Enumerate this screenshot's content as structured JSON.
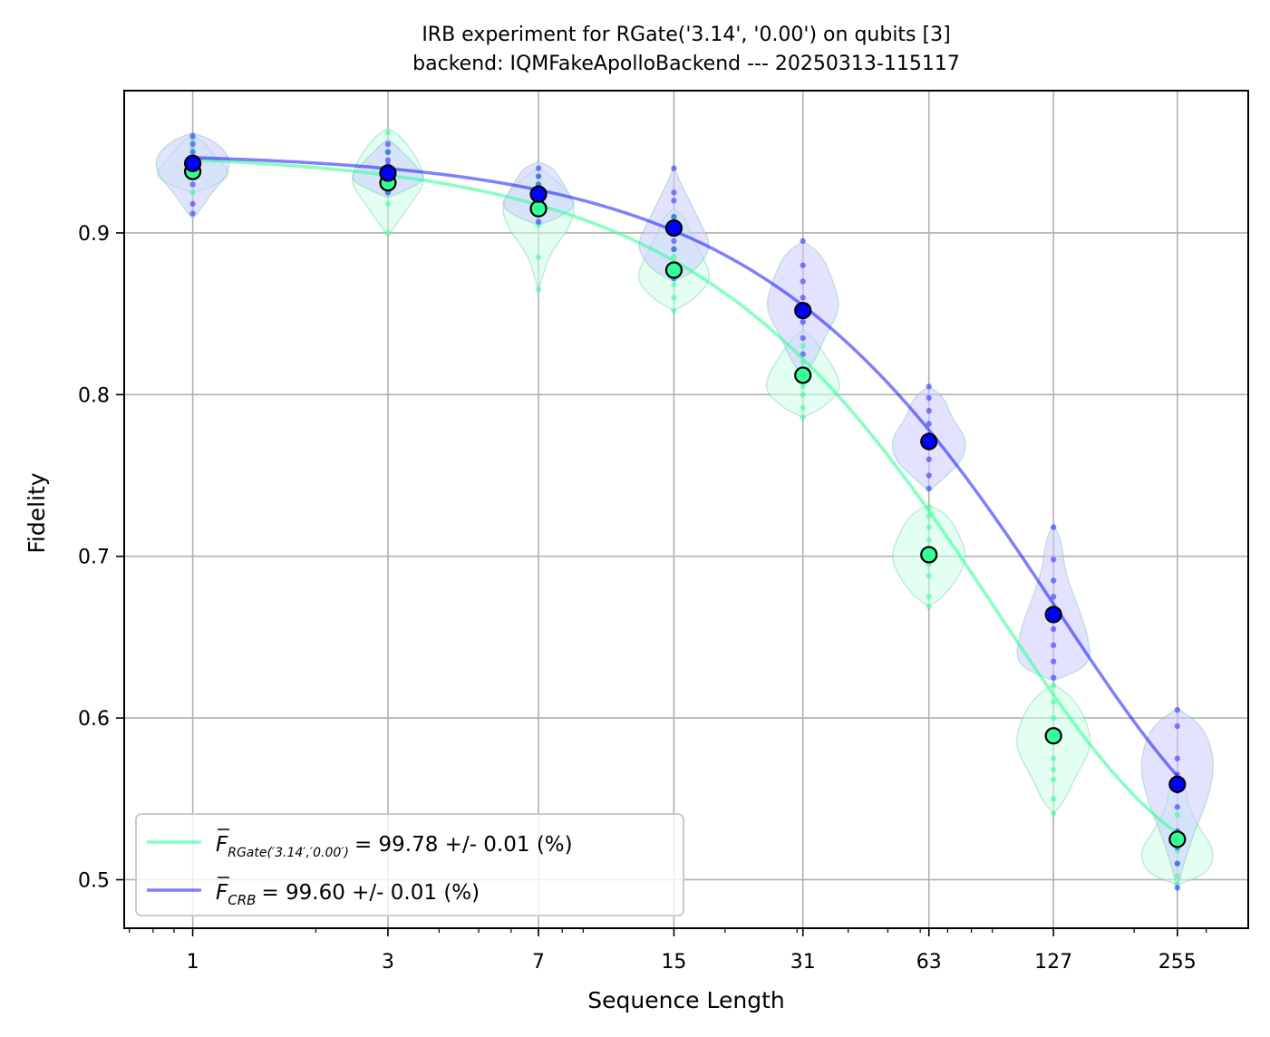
{
  "chart_data": {
    "type": "scatter",
    "title": "IRB experiment for RGate('3.14', '0.00') on qubits [3]",
    "subtitle": "backend: IQMFakeApolloBackend --- 20250313-115117",
    "xlabel": "Sequence Length",
    "ylabel": "Fidelity",
    "x_scale": "log",
    "x": [
      1,
      3,
      7,
      15,
      31,
      63,
      127,
      255
    ],
    "x_ticklabels": [
      "1",
      "3",
      "7",
      "15",
      "31",
      "63",
      "127",
      "255"
    ],
    "xlim": [
      0.68,
      380
    ],
    "y_ticks": [
      0.5,
      0.6,
      0.7,
      0.8,
      0.9
    ],
    "y_ticklabels": [
      "0.5",
      "0.6",
      "0.7",
      "0.8",
      "0.9"
    ],
    "ylim": [
      0.47,
      0.988
    ],
    "grid": true,
    "legend_position": "lower-left",
    "series": [
      {
        "name": "RGate('3.14', '0.00')",
        "legend_label": "= 99.78 +/- 0.01 (%)",
        "legend_symbol": "F",
        "legend_subscript": "RGate(′3.14′,′0.00′)",
        "color": "#33ff99",
        "means": [
          0.938,
          0.931,
          0.915,
          0.877,
          0.812,
          0.701,
          0.589,
          0.525
        ],
        "fit": {
          "A": 0.45,
          "p": 0.98927,
          "B": 0.5
        },
        "violins": [
          {
            "min": 0.925,
            "max": 0.96,
            "spread": [
              0.5,
              1.0,
              0.8,
              0.5,
              0.3
            ]
          },
          {
            "min": 0.898,
            "max": 0.965,
            "spread": [
              0.2,
              0.6,
              1.0,
              0.8,
              0.4
            ]
          },
          {
            "min": 0.865,
            "max": 0.94,
            "spread": [
              0.1,
              0.3,
              0.8,
              1.0,
              0.5
            ]
          },
          {
            "min": 0.852,
            "max": 0.915,
            "spread": [
              0.5,
              1.0,
              0.8,
              0.5,
              0.3
            ]
          },
          {
            "min": 0.786,
            "max": 0.84,
            "spread": [
              0.5,
              1.0,
              0.9,
              0.6,
              0.3
            ]
          },
          {
            "min": 0.669,
            "max": 0.732,
            "spread": [
              0.4,
              0.8,
              1.0,
              0.8,
              0.5
            ]
          },
          {
            "min": 0.541,
            "max": 0.621,
            "spread": [
              0.3,
              0.6,
              1.0,
              0.9,
              0.5
            ]
          },
          {
            "min": 0.497,
            "max": 0.565,
            "spread": [
              0.8,
              1.0,
              0.6,
              0.3,
              0.2
            ]
          }
        ],
        "samples": [
          [
            0.925,
            0.935,
            0.94,
            0.945,
            0.952,
            0.958
          ],
          [
            0.9,
            0.918,
            0.925,
            0.931,
            0.935,
            0.94,
            0.95,
            0.962
          ],
          [
            0.865,
            0.885,
            0.905,
            0.915,
            0.92,
            0.93,
            0.935
          ],
          [
            0.852,
            0.86,
            0.868,
            0.875,
            0.88,
            0.885,
            0.89,
            0.9,
            0.91
          ],
          [
            0.786,
            0.792,
            0.8,
            0.805,
            0.812,
            0.815,
            0.82,
            0.83
          ],
          [
            0.669,
            0.675,
            0.688,
            0.695,
            0.705,
            0.71,
            0.718,
            0.725,
            0.73
          ],
          [
            0.541,
            0.55,
            0.562,
            0.568,
            0.575,
            0.59,
            0.6,
            0.61,
            0.62
          ],
          [
            0.497,
            0.502,
            0.51,
            0.518,
            0.525,
            0.53,
            0.54,
            0.56
          ]
        ]
      },
      {
        "name": "CRB",
        "legend_label": "= 99.60 +/- 0.01 (%)",
        "legend_symbol": "F",
        "legend_subscript": "CRB",
        "color": "#0000ff",
        "means": [
          0.943,
          0.937,
          0.924,
          0.903,
          0.852,
          0.771,
          0.664,
          0.559
        ],
        "fit": {
          "A": 0.45,
          "p": 0.99239,
          "B": 0.5
        },
        "violins": [
          {
            "min": 0.909,
            "max": 0.962,
            "spread": [
              0.2,
              0.5,
              0.9,
              1.0,
              0.6
            ]
          },
          {
            "min": 0.922,
            "max": 0.958,
            "spread": [
              0.4,
              1.0,
              0.8,
              0.5,
              0.2
            ]
          },
          {
            "min": 0.905,
            "max": 0.944,
            "spread": [
              0.5,
              1.0,
              0.8,
              0.6,
              0.4
            ]
          },
          {
            "min": 0.87,
            "max": 0.942,
            "spread": [
              0.6,
              1.0,
              0.7,
              0.4,
              0.1
            ]
          },
          {
            "min": 0.812,
            "max": 0.895,
            "spread": [
              0.3,
              0.6,
              1.0,
              0.8,
              0.5
            ]
          },
          {
            "min": 0.74,
            "max": 0.805,
            "spread": [
              0.3,
              0.9,
              1.0,
              0.6,
              0.4
            ]
          },
          {
            "min": 0.623,
            "max": 0.72,
            "spread": [
              1.0,
              0.9,
              0.6,
              0.3,
              0.2
            ]
          },
          {
            "min": 0.493,
            "max": 0.606,
            "spread": [
              0.1,
              0.4,
              0.8,
              1.0,
              0.7
            ]
          }
        ],
        "samples": [
          [
            0.912,
            0.918,
            0.93,
            0.935,
            0.945,
            0.95,
            0.955,
            0.96
          ],
          [
            0.925,
            0.93,
            0.937,
            0.942,
            0.945,
            0.95,
            0.955
          ],
          [
            0.907,
            0.915,
            0.92,
            0.925,
            0.93,
            0.935,
            0.94
          ],
          [
            0.872,
            0.88,
            0.89,
            0.895,
            0.903,
            0.91,
            0.92,
            0.925,
            0.94
          ],
          [
            0.815,
            0.825,
            0.835,
            0.845,
            0.852,
            0.86,
            0.87,
            0.88,
            0.895
          ],
          [
            0.742,
            0.75,
            0.76,
            0.768,
            0.775,
            0.782,
            0.79,
            0.798,
            0.805
          ],
          [
            0.625,
            0.635,
            0.645,
            0.655,
            0.665,
            0.675,
            0.685,
            0.698,
            0.718
          ],
          [
            0.495,
            0.51,
            0.52,
            0.53,
            0.545,
            0.555,
            0.565,
            0.575,
            0.595,
            0.605
          ]
        ]
      }
    ]
  }
}
